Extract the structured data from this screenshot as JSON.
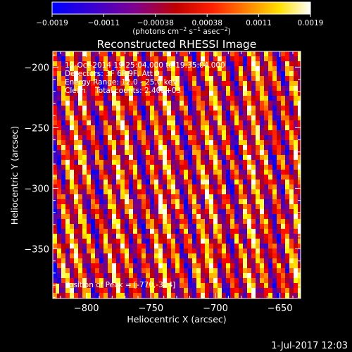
{
  "chart_data": {
    "type": "heatmap",
    "title": "Reconstructed RHESSI Image",
    "xlabel": "Heliocentric X (arcsec)",
    "ylabel": "Heliocentric Y (arcsec)",
    "xlim": [
      -826,
      -634
    ],
    "ylim": [
      -391,
      -187
    ],
    "xticks": [
      -800,
      -750,
      -700,
      -650
    ],
    "yticks": [
      -200,
      -250,
      -300,
      -350
    ],
    "colorbar": {
      "ticks": [
        "-0.0019",
        "-0.0011",
        "-0.00038",
        "0.00038",
        "0.0011",
        "0.0019"
      ],
      "range": [
        -0.0019,
        0.0019
      ],
      "unit_label": "(photons cm^-2 s^-1 asec^-2)",
      "colormap": "blue-purple-red-orange-yellow-white"
    },
    "image_pattern": "diagonal stripes of alternating high and low intensity",
    "annotations": {
      "time_range": "19-Oct-2014 19:25:04.000 to 19:35:04.000",
      "detectors": "Detectors: 3F 6F 9F, Att 0",
      "energy_range": "Energy Range: 12.0 - 25.0 keV",
      "clean": "Clean    Total counts: 2.40E+03",
      "peak": "Position of Peak = [-770,-324]"
    },
    "timestamp": "1-Jul-2017 12:03"
  },
  "colors": {
    "background": "#000000",
    "text": "#ffffff",
    "colormap": [
      "#0000ff",
      "#4000c0",
      "#800080",
      "#c00000",
      "#ff0000",
      "#ff8000",
      "#ffff00",
      "#ffffff"
    ]
  }
}
